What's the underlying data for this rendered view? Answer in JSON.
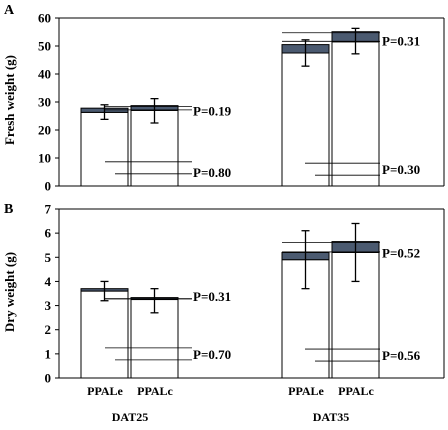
{
  "chart_data": [
    {
      "panel_label": "A",
      "type": "bar",
      "stacked": true,
      "ylabel": "Fresh weight (g)",
      "ylim": [
        0,
        60
      ],
      "yticks": [
        "0",
        "10",
        "20",
        "30",
        "40",
        "50",
        "60"
      ],
      "categories": [
        "PPALe",
        "PPALc",
        "PPALe",
        "PPALc"
      ],
      "groups": [
        "DAT25",
        "DAT35"
      ],
      "series": [
        {
          "values": [
            26.3,
            27.0,
            47.5,
            51.5
          ],
          "color": "#ffffff"
        },
        {
          "values": [
            1.5,
            1.7,
            3.0,
            3.6
          ],
          "color": "#4b5a70"
        }
      ],
      "error_bars": [
        {
          "center": 26.3,
          "low": 23.8,
          "high": 29.0
        },
        {
          "center": 27.0,
          "low": 22.5,
          "high": 31.2
        },
        {
          "center": 47.5,
          "low": 42.8,
          "high": 52.2
        },
        {
          "center": 51.5,
          "low": 47.2,
          "high": 56.3
        }
      ],
      "annotations": [
        {
          "text": "P=0.19",
          "y": 27.0
        },
        {
          "text": "P=0.80",
          "y": 6.5
        },
        {
          "text": "P=0.31",
          "y": 52.0
        },
        {
          "text": "P=0.30",
          "y": 6.0
        }
      ]
    },
    {
      "panel_label": "B",
      "type": "bar",
      "stacked": true,
      "ylabel": "Dry weight (g)",
      "ylim": [
        0,
        7
      ],
      "yticks": [
        "0",
        "1",
        "2",
        "3",
        "4",
        "5",
        "6",
        "7"
      ],
      "categories": [
        "PPALe",
        "PPALc",
        "PPALe",
        "PPALc"
      ],
      "groups": [
        "DAT25",
        "DAT35"
      ],
      "series": [
        {
          "values": [
            3.6,
            3.25,
            4.9,
            5.2
          ],
          "color": "#ffffff"
        },
        {
          "values": [
            0.1,
            0.08,
            0.3,
            0.45
          ],
          "color": "#4b5a70"
        }
      ],
      "error_bars": [
        {
          "center": 3.6,
          "low": 3.2,
          "high": 4.0
        },
        {
          "center": 3.25,
          "low": 2.7,
          "high": 3.7
        },
        {
          "center": 4.9,
          "low": 3.7,
          "high": 6.1
        },
        {
          "center": 5.2,
          "low": 4.0,
          "high": 6.4
        }
      ],
      "annotations": [
        {
          "text": "P=0.31",
          "y": 3.4
        },
        {
          "text": "P=0.70",
          "y": 1.0
        },
        {
          "text": "P=0.52",
          "y": 5.2
        },
        {
          "text": "P=0.56",
          "y": 0.95
        }
      ]
    }
  ]
}
